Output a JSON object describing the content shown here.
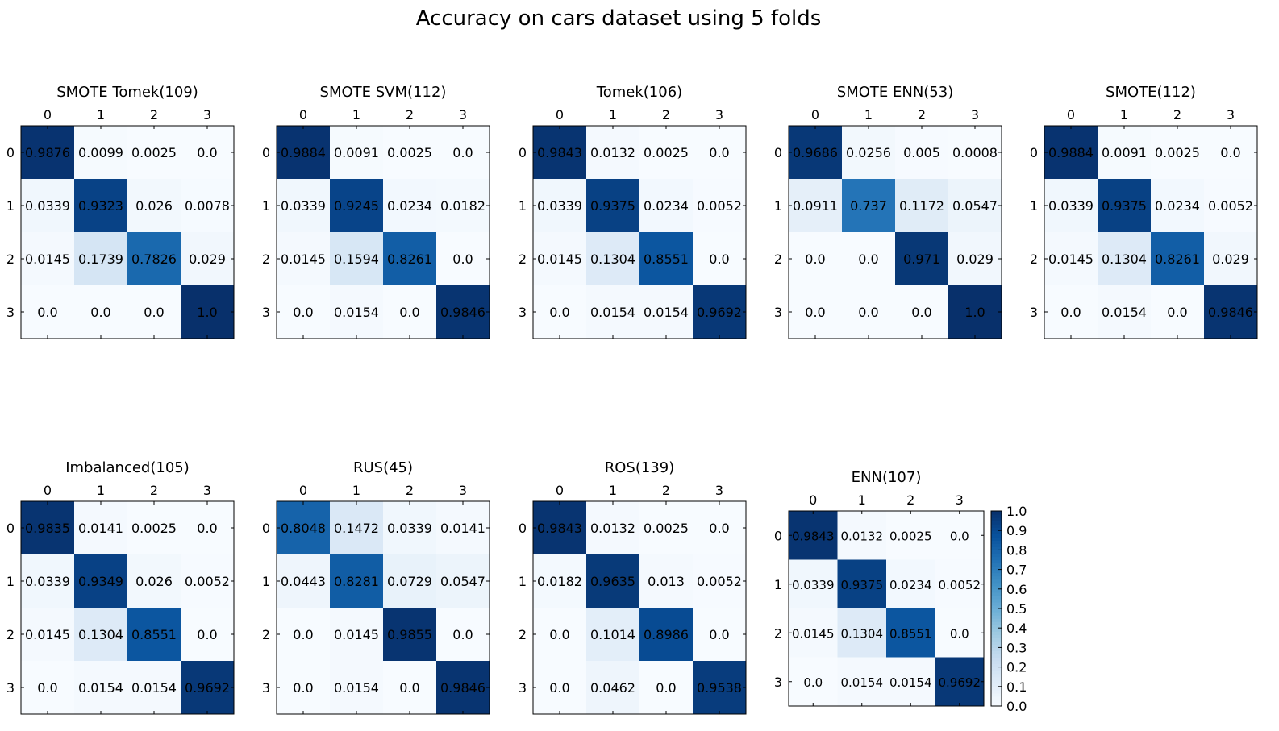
{
  "title": "Accuracy on cars dataset using 5 folds",
  "chart_data": [
    {
      "type": "heatmap",
      "title": "SMOTE Tomek(109)",
      "x_ticks": [
        "0",
        "1",
        "2",
        "3"
      ],
      "y_ticks": [
        "0",
        "1",
        "2",
        "3"
      ],
      "values": [
        [
          "0.9876",
          "0.0099",
          "0.0025",
          "0.0"
        ],
        [
          "0.0339",
          "0.9323",
          "0.026",
          "0.0078"
        ],
        [
          "0.0145",
          "0.1739",
          "0.7826",
          "0.029"
        ],
        [
          "0.0",
          "0.0",
          "0.0",
          "1.0"
        ]
      ]
    },
    {
      "type": "heatmap",
      "title": "SMOTE SVM(112)",
      "x_ticks": [
        "0",
        "1",
        "2",
        "3"
      ],
      "y_ticks": [
        "0",
        "1",
        "2",
        "3"
      ],
      "values": [
        [
          "0.9884",
          "0.0091",
          "0.0025",
          "0.0"
        ],
        [
          "0.0339",
          "0.9245",
          "0.0234",
          "0.0182"
        ],
        [
          "0.0145",
          "0.1594",
          "0.8261",
          "0.0"
        ],
        [
          "0.0",
          "0.0154",
          "0.0",
          "0.9846"
        ]
      ]
    },
    {
      "type": "heatmap",
      "title": "Tomek(106)",
      "x_ticks": [
        "0",
        "1",
        "2",
        "3"
      ],
      "y_ticks": [
        "0",
        "1",
        "2",
        "3"
      ],
      "values": [
        [
          "0.9843",
          "0.0132",
          "0.0025",
          "0.0"
        ],
        [
          "0.0339",
          "0.9375",
          "0.0234",
          "0.0052"
        ],
        [
          "0.0145",
          "0.1304",
          "0.8551",
          "0.0"
        ],
        [
          "0.0",
          "0.0154",
          "0.0154",
          "0.9692"
        ]
      ]
    },
    {
      "type": "heatmap",
      "title": "SMOTE ENN(53)",
      "x_ticks": [
        "0",
        "1",
        "2",
        "3"
      ],
      "y_ticks": [
        "0",
        "1",
        "2",
        "3"
      ],
      "values": [
        [
          "0.9686",
          "0.0256",
          "0.005",
          "0.0008"
        ],
        [
          "0.0911",
          "0.737",
          "0.1172",
          "0.0547"
        ],
        [
          "0.0",
          "0.0",
          "0.971",
          "0.029"
        ],
        [
          "0.0",
          "0.0",
          "0.0",
          "1.0"
        ]
      ]
    },
    {
      "type": "heatmap",
      "title": "SMOTE(112)",
      "x_ticks": [
        "0",
        "1",
        "2",
        "3"
      ],
      "y_ticks": [
        "0",
        "1",
        "2",
        "3"
      ],
      "values": [
        [
          "0.9884",
          "0.0091",
          "0.0025",
          "0.0"
        ],
        [
          "0.0339",
          "0.9375",
          "0.0234",
          "0.0052"
        ],
        [
          "0.0145",
          "0.1304",
          "0.8261",
          "0.029"
        ],
        [
          "0.0",
          "0.0154",
          "0.0",
          "0.9846"
        ]
      ]
    },
    {
      "type": "heatmap",
      "title": "Imbalanced(105)",
      "x_ticks": [
        "0",
        "1",
        "2",
        "3"
      ],
      "y_ticks": [
        "0",
        "1",
        "2",
        "3"
      ],
      "values": [
        [
          "0.9835",
          "0.0141",
          "0.0025",
          "0.0"
        ],
        [
          "0.0339",
          "0.9349",
          "0.026",
          "0.0052"
        ],
        [
          "0.0145",
          "0.1304",
          "0.8551",
          "0.0"
        ],
        [
          "0.0",
          "0.0154",
          "0.0154",
          "0.9692"
        ]
      ]
    },
    {
      "type": "heatmap",
      "title": "RUS(45)",
      "x_ticks": [
        "0",
        "1",
        "2",
        "3"
      ],
      "y_ticks": [
        "0",
        "1",
        "2",
        "3"
      ],
      "values": [
        [
          "0.8048",
          "0.1472",
          "0.0339",
          "0.0141"
        ],
        [
          "0.0443",
          "0.8281",
          "0.0729",
          "0.0547"
        ],
        [
          "0.0",
          "0.0145",
          "0.9855",
          "0.0"
        ],
        [
          "0.0",
          "0.0154",
          "0.0",
          "0.9846"
        ]
      ]
    },
    {
      "type": "heatmap",
      "title": "ROS(139)",
      "x_ticks": [
        "0",
        "1",
        "2",
        "3"
      ],
      "y_ticks": [
        "0",
        "1",
        "2",
        "3"
      ],
      "values": [
        [
          "0.9843",
          "0.0132",
          "0.0025",
          "0.0"
        ],
        [
          "0.0182",
          "0.9635",
          "0.013",
          "0.0052"
        ],
        [
          "0.0",
          "0.1014",
          "0.8986",
          "0.0"
        ],
        [
          "0.0",
          "0.0462",
          "0.0",
          "0.9538"
        ]
      ]
    },
    {
      "type": "heatmap",
      "title": "ENN(107)",
      "x_ticks": [
        "0",
        "1",
        "2",
        "3"
      ],
      "y_ticks": [
        "0",
        "1",
        "2",
        "3"
      ],
      "values": [
        [
          "0.9843",
          "0.0132",
          "0.0025",
          "0.0"
        ],
        [
          "0.0339",
          "0.9375",
          "0.0234",
          "0.0052"
        ],
        [
          "0.0145",
          "0.1304",
          "0.8551",
          "0.0"
        ],
        [
          "0.0",
          "0.0154",
          "0.0154",
          "0.9692"
        ]
      ],
      "colorbar": {
        "min": 0.0,
        "max": 1.0,
        "ticks": [
          "0.0",
          "0.1",
          "0.2",
          "0.3",
          "0.4",
          "0.5",
          "0.6",
          "0.7",
          "0.8",
          "0.9",
          "1.0"
        ],
        "colormap": "Blues"
      }
    }
  ]
}
